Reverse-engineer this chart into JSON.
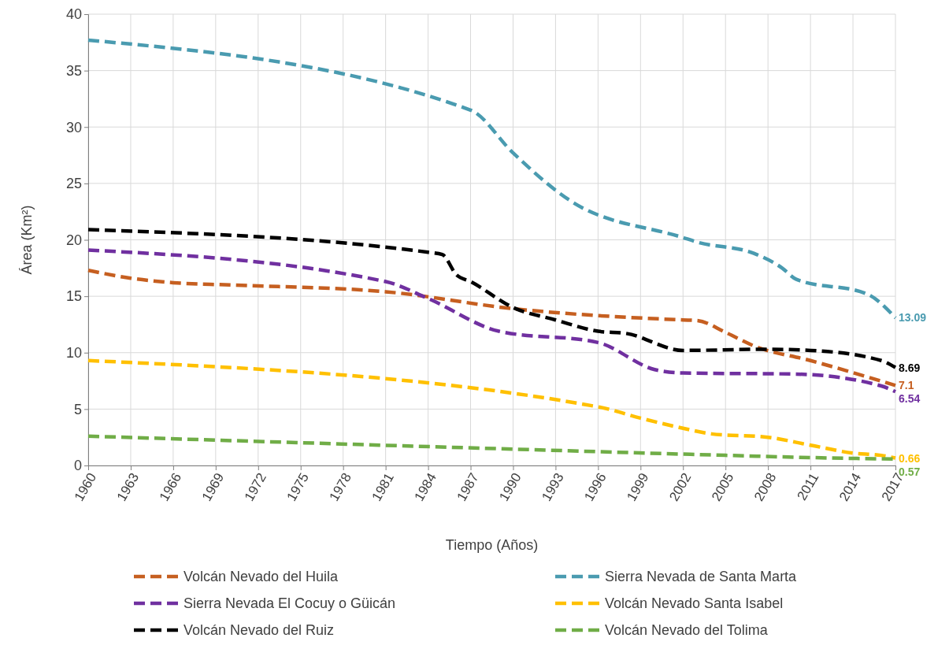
{
  "chart_data": {
    "type": "line",
    "xlabel": "Tiempo (Años)",
    "ylabel": "Área (Km²)",
    "xlim": [
      1960,
      2017
    ],
    "xticks": [
      1960,
      1963,
      1966,
      1969,
      1972,
      1975,
      1978,
      1981,
      1984,
      1987,
      1990,
      1993,
      1996,
      1999,
      2002,
      2005,
      2008,
      2011,
      2014,
      2017
    ],
    "ylim": [
      0,
      40
    ],
    "yticks": [
      0,
      5,
      10,
      15,
      20,
      25,
      30,
      35,
      40
    ],
    "grid": true,
    "legend": "bottom",
    "line_style": "dashed",
    "marker": "none",
    "series": [
      {
        "name": "Volcán Nevado del Huila",
        "color": "#c65f20",
        "x": [
          1960,
          1963,
          1966,
          1970,
          1981,
          1990,
          2002,
          2003,
          2005,
          2007,
          2011,
          2017
        ],
        "values": [
          17.3,
          16.6,
          16.2,
          16.0,
          15.4,
          13.9,
          12.9,
          12.85,
          11.8,
          10.6,
          9.3,
          7.1
        ],
        "value_labels": [
          null,
          null,
          null,
          null,
          null,
          null,
          null,
          null,
          null,
          null,
          null,
          "7.1"
        ]
      },
      {
        "name": "Sierra Nevada de Santa Marta",
        "color": "#4a9bb0",
        "x": [
          1960,
          1987,
          1990,
          1994,
          2002,
          2003,
          2007,
          2009,
          2010,
          2015,
          2017
        ],
        "values": [
          37.7,
          31.5,
          27.7,
          23.5,
          20.2,
          19.8,
          18.8,
          17.5,
          16.5,
          15.2,
          13.09
        ],
        "value_labels": [
          null,
          null,
          null,
          null,
          null,
          null,
          null,
          null,
          null,
          null,
          "13.09"
        ]
      },
      {
        "name": "Sierra Nevada El Cocuy o Güicán",
        "color": "#7030a0",
        "x": [
          1960,
          1981,
          1984,
          1989,
          1996,
          2000,
          2002,
          2010,
          2016,
          2017
        ],
        "values": [
          19.1,
          16.3,
          14.8,
          11.9,
          10.9,
          8.5,
          8.2,
          8.1,
          7.05,
          6.54
        ],
        "value_labels": [
          null,
          null,
          null,
          null,
          null,
          null,
          null,
          null,
          null,
          "6.54"
        ]
      },
      {
        "name": "Volcán Nevado Santa Isabel",
        "color": "#ffc000",
        "x": [
          1960,
          1996,
          1999,
          2002,
          2004,
          2008,
          2011,
          2014,
          2016,
          2017
        ],
        "values": [
          9.3,
          5.2,
          4.2,
          3.3,
          2.8,
          2.5,
          1.8,
          1.1,
          0.9,
          0.66
        ],
        "value_labels": [
          null,
          null,
          null,
          null,
          null,
          null,
          null,
          null,
          null,
          "0.66"
        ]
      },
      {
        "name": "Volcán Nevado del Ruiz",
        "color": "#000000",
        "x": [
          1960,
          1984,
          1985,
          1986,
          1987,
          1990,
          1993,
          1996,
          1998,
          2002,
          2008,
          2011,
          2016,
          2017
        ],
        "values": [
          20.9,
          18.9,
          18.7,
          16.9,
          16.3,
          14.0,
          12.9,
          11.9,
          11.7,
          10.2,
          10.3,
          10.2,
          9.3,
          8.69
        ],
        "value_labels": [
          null,
          null,
          null,
          null,
          null,
          null,
          null,
          null,
          null,
          null,
          null,
          null,
          null,
          "8.69"
        ]
      },
      {
        "name": "Volcán Nevado del Tolima",
        "color": "#70ad47",
        "x": [
          1960,
          1990,
          2005,
          2011,
          2017
        ],
        "values": [
          2.6,
          1.45,
          0.9,
          0.7,
          0.57
        ],
        "value_labels": [
          null,
          null,
          null,
          null,
          "0.57"
        ]
      }
    ]
  }
}
